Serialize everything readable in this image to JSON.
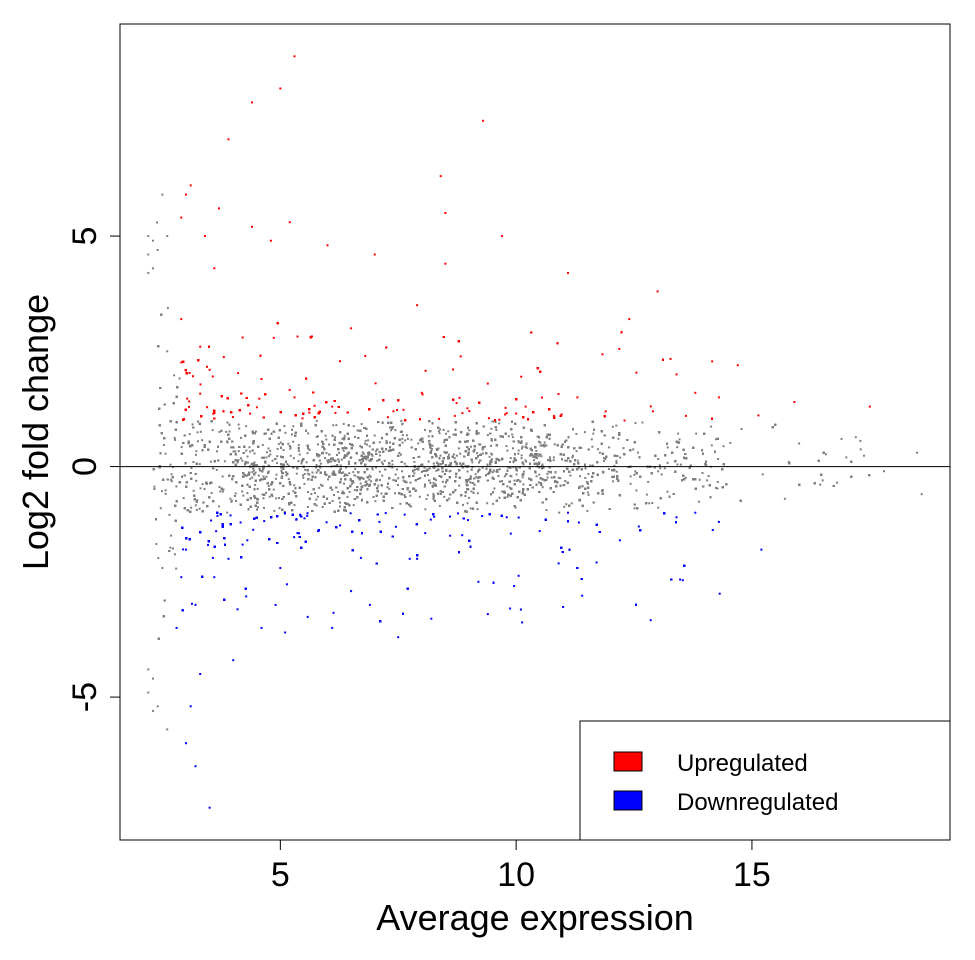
{
  "chart_data": {
    "type": "scatter",
    "title": "",
    "xlabel": "Average expression",
    "ylabel": "Log2 fold change",
    "xlim": [
      1.6,
      19.2
    ],
    "ylim": [
      -8.1,
      9.6
    ],
    "xticks": [
      5,
      10,
      15
    ],
    "yticks": [
      -5,
      0,
      5
    ],
    "reference_line_y": 0,
    "colors": {
      "up": "#ff0000",
      "down": "#0000ff",
      "ns": "#7f7f7f",
      "axis": "#000000"
    },
    "legend": {
      "position": "bottom-right",
      "entries": [
        {
          "label": "Upregulated",
          "color": "#ff0000"
        },
        {
          "label": "Downregulated",
          "color": "#0000ff"
        }
      ]
    },
    "highlight_points": {
      "up": [
        [
          5.3,
          8.9
        ],
        [
          5.0,
          8.2
        ],
        [
          4.4,
          7.9
        ],
        [
          9.3,
          7.5
        ],
        [
          3.9,
          7.1
        ],
        [
          8.4,
          6.3
        ],
        [
          3.1,
          6.1
        ],
        [
          3.0,
          5.9
        ],
        [
          8.5,
          5.5
        ],
        [
          3.7,
          5.6
        ],
        [
          2.9,
          5.4
        ],
        [
          4.4,
          5.2
        ],
        [
          5.2,
          5.3
        ],
        [
          3.4,
          5.0
        ],
        [
          4.8,
          4.9
        ],
        [
          9.7,
          5.0
        ],
        [
          6.0,
          4.8
        ],
        [
          7.0,
          4.6
        ],
        [
          3.6,
          4.3
        ],
        [
          8.5,
          4.4
        ],
        [
          11.1,
          4.2
        ],
        [
          13.0,
          3.8
        ],
        [
          12.4,
          3.2
        ],
        [
          14.7,
          2.2
        ],
        [
          13.4,
          2.0
        ],
        [
          13.8,
          1.6
        ],
        [
          17.5,
          1.3
        ],
        [
          15.9,
          1.4
        ],
        [
          14.3,
          1.5
        ],
        [
          13.6,
          1.1
        ],
        [
          12.9,
          1.2
        ],
        [
          2.9,
          3.2
        ],
        [
          3.3,
          2.6
        ],
        [
          3.5,
          2.1
        ],
        [
          4.2,
          2.8
        ],
        [
          4.6,
          1.9
        ],
        [
          5.3,
          1.5
        ],
        [
          6.1,
          1.3
        ],
        [
          6.8,
          2.4
        ],
        [
          7.4,
          1.2
        ],
        [
          8.0,
          1.6
        ],
        [
          8.7,
          1.1
        ],
        [
          9.4,
          1.8
        ],
        [
          10.2,
          1.3
        ],
        [
          10.8,
          1.1
        ],
        [
          11.3,
          1.5
        ],
        [
          11.9,
          1.2
        ],
        [
          12.3,
          1.0
        ],
        [
          7.9,
          3.5
        ],
        [
          6.5,
          3.0
        ]
      ],
      "down": [
        [
          3.5,
          -7.4
        ],
        [
          3.2,
          -6.5
        ],
        [
          3.0,
          -6.0
        ],
        [
          3.1,
          -5.2
        ],
        [
          3.3,
          -4.5
        ],
        [
          2.8,
          -3.5
        ],
        [
          4.0,
          -4.2
        ],
        [
          3.2,
          -3.0
        ],
        [
          4.6,
          -3.5
        ],
        [
          5.1,
          -3.6
        ],
        [
          6.1,
          -3.5
        ],
        [
          7.5,
          -3.7
        ],
        [
          8.2,
          -3.3
        ],
        [
          9.4,
          -3.2
        ],
        [
          10.1,
          -3.1
        ],
        [
          10.9,
          -2.1
        ],
        [
          11.4,
          -2.8
        ],
        [
          12.6,
          -1.3
        ],
        [
          13.4,
          -1.1
        ],
        [
          15.2,
          -1.8
        ],
        [
          14.3,
          -1.2
        ],
        [
          13.8,
          -1.0
        ],
        [
          12.2,
          -1.6
        ],
        [
          3.6,
          -2.4
        ],
        [
          4.3,
          -1.6
        ],
        [
          5.0,
          -2.2
        ],
        [
          5.8,
          -1.4
        ],
        [
          6.5,
          -2.7
        ],
        [
          7.1,
          -1.2
        ],
        [
          7.9,
          -2.0
        ],
        [
          8.6,
          -1.5
        ],
        [
          9.2,
          -2.5
        ],
        [
          9.8,
          -1.1
        ],
        [
          10.5,
          -1.4
        ],
        [
          11.1,
          -1.0
        ],
        [
          4.9,
          -3.0
        ],
        [
          3.9,
          -2.0
        ],
        [
          2.9,
          -2.4
        ],
        [
          3.0,
          -1.8
        ],
        [
          6.9,
          -3.0
        ]
      ],
      "ns_extremes": [
        [
          2.2,
          5.0
        ],
        [
          2.3,
          4.9
        ],
        [
          2.2,
          4.6
        ],
        [
          2.3,
          4.3
        ],
        [
          2.2,
          4.2
        ],
        [
          2.4,
          4.7
        ],
        [
          2.5,
          5.9
        ],
        [
          2.6,
          5.0
        ],
        [
          2.2,
          -4.4
        ],
        [
          2.3,
          -4.6
        ],
        [
          2.2,
          -4.9
        ],
        [
          2.4,
          -5.2
        ],
        [
          2.3,
          -5.3
        ],
        [
          2.6,
          -5.7
        ],
        [
          16.0,
          0.5
        ],
        [
          16.5,
          -0.3
        ],
        [
          17.0,
          0.2
        ],
        [
          17.8,
          -0.1
        ],
        [
          18.5,
          0.3
        ],
        [
          18.6,
          -0.6
        ],
        [
          16.9,
          0.6
        ],
        [
          15.7,
          -0.7
        ],
        [
          2.5,
          -2.2
        ],
        [
          2.6,
          2.5
        ]
      ]
    },
    "background_cloud": {
      "description_of_counts": "thousands of non-significant grey points between 2.3 and 18.6 average expression, mostly within -1 to 1 log2 fold change",
      "approx_point_count": 14000
    }
  }
}
